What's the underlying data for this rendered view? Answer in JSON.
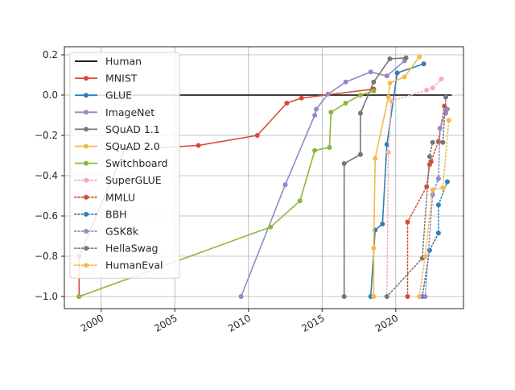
{
  "chart_data": {
    "type": "line",
    "title": "",
    "xlabel": "",
    "ylabel": "",
    "xlim": [
      1997.5,
      2024.6
    ],
    "ylim": [
      -1.06,
      0.24
    ],
    "grid": true,
    "legend_position": "top-left",
    "x_ticks": [
      2000,
      2005,
      2010,
      2015,
      2020
    ],
    "x_tick_labels": [
      "2000",
      "2005",
      "2010",
      "2015",
      "2020"
    ],
    "y_ticks": [
      0.2,
      0.0,
      -0.2,
      -0.4,
      -0.6,
      -0.8,
      -1.0
    ],
    "y_tick_labels": [
      "0.2",
      "0.0",
      "−0.2",
      "−0.4",
      "−0.6",
      "−0.8",
      "−1.0"
    ],
    "series": [
      {
        "name": "Human",
        "color": "#000000",
        "style": "solid",
        "marker": false,
        "x": [
          1998.5,
          2023.8
        ],
        "y": [
          0,
          0
        ]
      },
      {
        "name": "MNIST",
        "color": "#d84a34",
        "style": "solid",
        "marker": true,
        "x": [
          1998.5,
          1998.5,
          2001.6,
          2006.6,
          2010.6,
          2012.6,
          2013.6,
          2018.5
        ],
        "y": [
          -1.0,
          -0.8,
          -0.27,
          -0.25,
          -0.2,
          -0.04,
          -0.015,
          0.03
        ]
      },
      {
        "name": "GLUE",
        "color": "#2f7fb5",
        "style": "solid",
        "marker": true,
        "x": [
          2018.3,
          2018.6,
          2019.1,
          2019.4,
          2020.1,
          2021.9
        ],
        "y": [
          -1.0,
          -0.67,
          -0.64,
          -0.245,
          0.11,
          0.155
        ]
      },
      {
        "name": "ImageNet",
        "color": "#9487c9",
        "style": "solid",
        "marker": true,
        "x": [
          2009.5,
          2012.5,
          2014.5,
          2014.6,
          2015.4,
          2016.6,
          2018.3,
          2019.4,
          2020.6
        ],
        "y": [
          -1.0,
          -0.445,
          -0.1,
          -0.07,
          0.005,
          0.065,
          0.115,
          0.095,
          0.17
        ]
      },
      {
        "name": "SQuAD 1.1",
        "color": "#777777",
        "style": "solid",
        "marker": true,
        "x": [
          2016.5,
          2016.5,
          2017.6,
          2017.6,
          2018.5,
          2019.6,
          2020.7
        ],
        "y": [
          -1.0,
          -0.34,
          -0.295,
          -0.09,
          0.065,
          0.18,
          0.185
        ]
      },
      {
        "name": "SQuAD 2.0",
        "color": "#f5b94a",
        "style": "solid",
        "marker": true,
        "x": [
          2018.5,
          2018.5,
          2018.6,
          2019.5,
          2019.6,
          2020.6,
          2021.6
        ],
        "y": [
          -1.0,
          -0.76,
          -0.315,
          -0.01,
          0.06,
          0.09,
          0.19
        ]
      },
      {
        "name": "Switchboard",
        "color": "#8bb83d",
        "style": "solid",
        "marker": true,
        "x": [
          1998.5,
          2011.5,
          2013.5,
          2014.5,
          2015.5,
          2015.6,
          2016.6,
          2017.6,
          2018.5
        ],
        "y": [
          -1.0,
          -0.655,
          -0.525,
          -0.275,
          -0.26,
          -0.085,
          -0.04,
          0.0,
          0.02
        ]
      },
      {
        "name": "SuperGLUE",
        "color": "#f7aeb2",
        "style": "dotted",
        "marker": true,
        "x": [
          2019.4,
          2019.5,
          2019.7,
          2022.1,
          2022.5,
          2023.1
        ],
        "y": [
          -1.0,
          -0.285,
          -0.03,
          0.025,
          0.035,
          0.08
        ]
      },
      {
        "name": "MMLU",
        "color": "#d84a34",
        "style": "dotted",
        "marker": true,
        "x": [
          2020.8,
          2020.8,
          2022.1,
          2022.3,
          2022.4,
          2022.9,
          2023.3
        ],
        "y": [
          -1.0,
          -0.63,
          -0.455,
          -0.345,
          -0.33,
          -0.23,
          -0.055
        ]
      },
      {
        "name": "BBH",
        "color": "#2f7fb5",
        "style": "dotted",
        "marker": true,
        "x": [
          2021.8,
          2022.3,
          2022.9,
          2022.9,
          2023.5
        ],
        "y": [
          -1.0,
          -0.77,
          -0.685,
          -0.545,
          -0.43
        ]
      },
      {
        "name": "GSK8k",
        "color": "#9487c9",
        "style": "dotted",
        "marker": true,
        "x": [
          2022.0,
          2022.5,
          2022.9,
          2023.0,
          2023.4,
          2023.5
        ],
        "y": [
          -1.0,
          -0.495,
          -0.415,
          -0.165,
          -0.09,
          -0.07
        ]
      },
      {
        "name": "HellaSwag",
        "color": "#777777",
        "style": "dotted",
        "marker": true,
        "x": [
          2019.4,
          2021.8,
          2022.3,
          2022.5,
          2023.2,
          2023.4
        ],
        "y": [
          -1.0,
          -0.81,
          -0.305,
          -0.235,
          -0.235,
          -0.01
        ]
      },
      {
        "name": "HumanEval",
        "color": "#f5b94a",
        "style": "dotted",
        "marker": true,
        "x": [
          2021.6,
          2022.0,
          2022.5,
          2023.2,
          2023.6
        ],
        "y": [
          -1.0,
          -0.8,
          -0.47,
          -0.46,
          -0.125
        ]
      }
    ]
  }
}
